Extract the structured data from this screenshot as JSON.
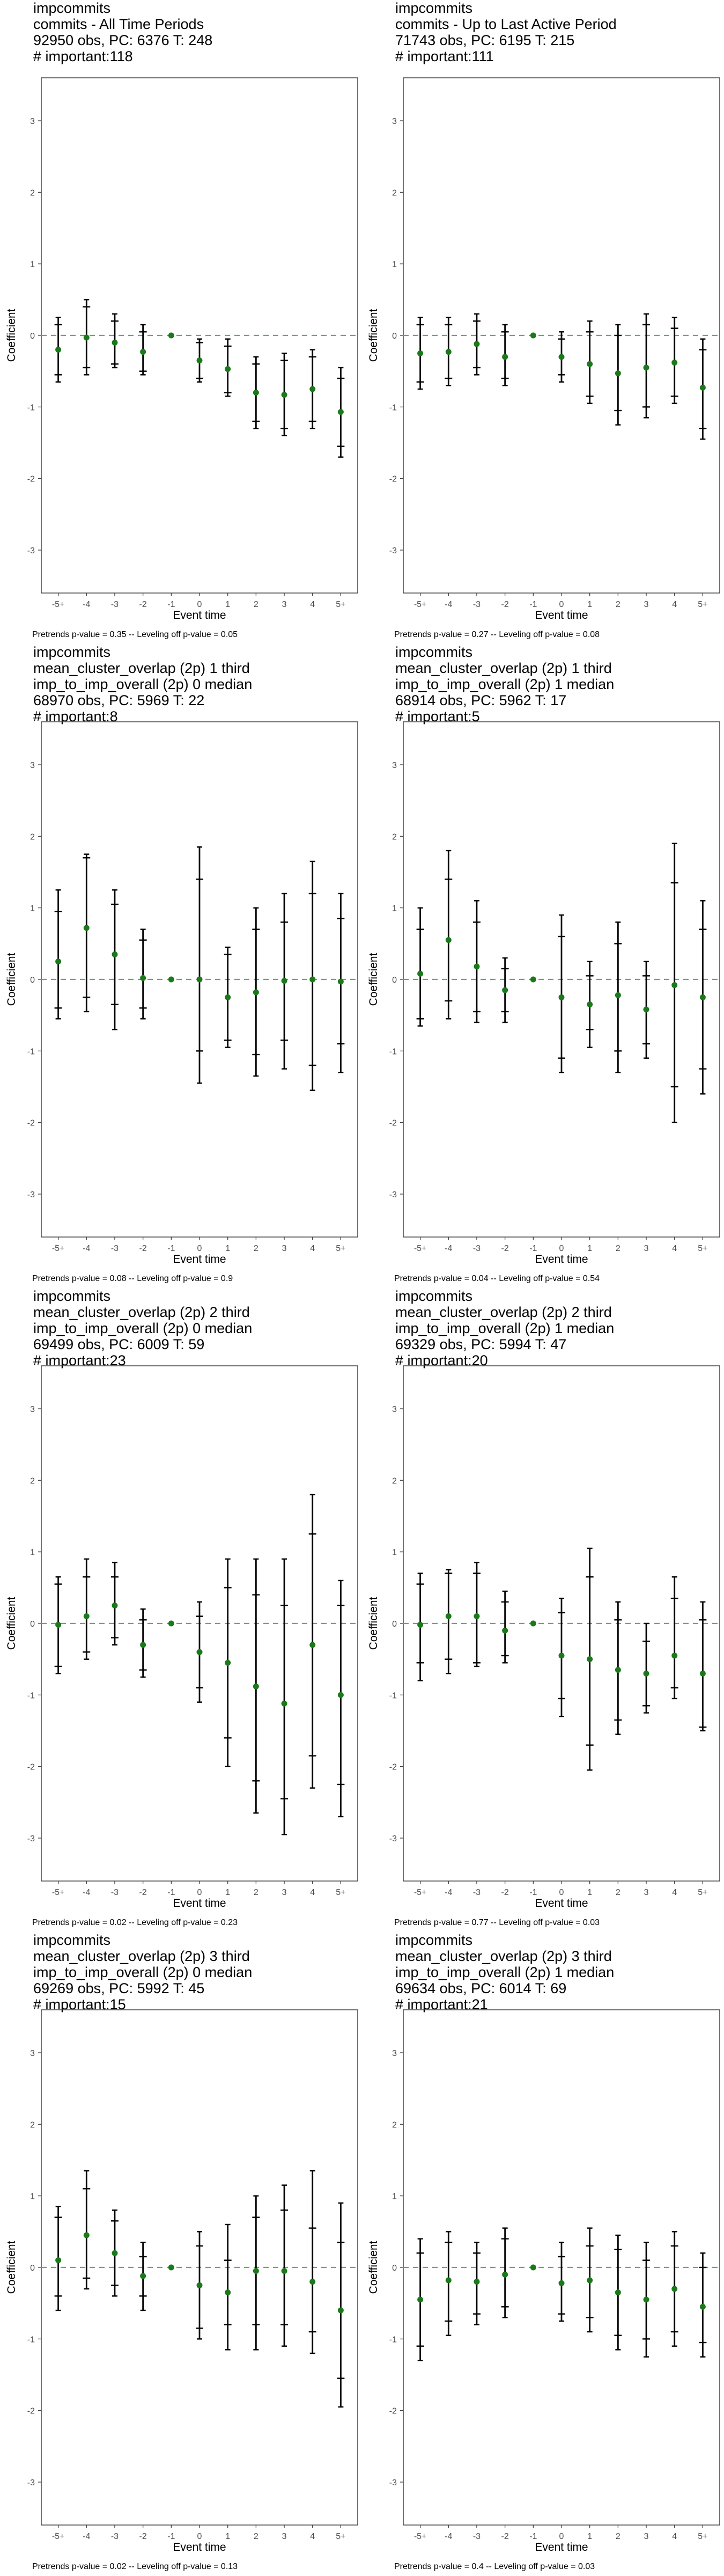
{
  "figure": {
    "background": "#ffffff",
    "point_color": "#1a7a1a",
    "zero_line_color": "#33cc33",
    "bar_color": "#000000"
  },
  "chart_data": [
    {
      "type": "scatter",
      "title_lines": [
        "impcommits",
        "commits - All Time Periods",
        "92950 obs, PC: 6376 T: 248",
        "# important:118"
      ],
      "xlabel": "Event time",
      "ylabel": "Coefficient",
      "categories": [
        "-5+",
        "-4",
        "-3",
        "-2",
        "-1",
        "0",
        "1",
        "2",
        "3",
        "4",
        "5+"
      ],
      "ylim": [
        -3.6,
        3.6
      ],
      "yticks": [
        -3,
        -2,
        -1,
        0,
        1,
        2,
        3
      ],
      "series": [
        {
          "values": [
            -0.2,
            -0.03,
            -0.1,
            -0.23,
            0,
            -0.35,
            -0.47,
            -0.8,
            -0.83,
            -0.75,
            -1.07
          ],
          "ci90_low": [
            -0.55,
            -0.45,
            -0.4,
            -0.5,
            0,
            -0.6,
            -0.8,
            -1.2,
            -1.3,
            -1.2,
            -1.55
          ],
          "ci90_high": [
            0.15,
            0.4,
            0.2,
            0.05,
            0,
            -0.1,
            -0.15,
            -0.4,
            -0.35,
            -0.3,
            -0.6
          ],
          "ci95_low": [
            -0.65,
            -0.55,
            -0.45,
            -0.55,
            0,
            -0.65,
            -0.85,
            -1.3,
            -1.4,
            -1.3,
            -1.7
          ],
          "ci95_high": [
            0.25,
            0.5,
            0.3,
            0.15,
            0,
            -0.05,
            -0.05,
            -0.3,
            -0.25,
            -0.2,
            -0.45
          ]
        }
      ],
      "footnote": "Pretrends p-value = 0.35 -- Leveling off p-value = 0.05"
    },
    {
      "type": "scatter",
      "title_lines": [
        "impcommits",
        "commits - Up to Last Active Period",
        "71743 obs, PC: 6195 T: 215",
        "# important:111"
      ],
      "xlabel": "Event time",
      "ylabel": "Coefficient",
      "categories": [
        "-5+",
        "-4",
        "-3",
        "-2",
        "-1",
        "0",
        "1",
        "2",
        "3",
        "4",
        "5+"
      ],
      "ylim": [
        -3.6,
        3.6
      ],
      "yticks": [
        -3,
        -2,
        -1,
        0,
        1,
        2,
        3
      ],
      "series": [
        {
          "values": [
            -0.25,
            -0.23,
            -0.12,
            -0.3,
            0,
            -0.3,
            -0.4,
            -0.53,
            -0.45,
            -0.38,
            -0.73
          ],
          "ci90_low": [
            -0.65,
            -0.6,
            -0.45,
            -0.6,
            0,
            -0.55,
            -0.85,
            -1.05,
            -1.0,
            -0.85,
            -1.3
          ],
          "ci90_high": [
            0.15,
            0.15,
            0.2,
            0.05,
            0,
            -0.05,
            0.05,
            0.0,
            0.15,
            0.1,
            -0.2
          ],
          "ci95_low": [
            -0.75,
            -0.7,
            -0.55,
            -0.7,
            0,
            -0.65,
            -0.95,
            -1.25,
            -1.15,
            -0.95,
            -1.45
          ],
          "ci95_high": [
            0.25,
            0.25,
            0.3,
            0.15,
            0,
            0.05,
            0.2,
            0.15,
            0.3,
            0.25,
            -0.05
          ]
        }
      ],
      "footnote": "Pretrends p-value = 0.27 -- Leveling off p-value = 0.08"
    },
    {
      "type": "scatter",
      "title_lines": [
        "impcommits",
        "mean_cluster_overlap (2p) 1 third",
        "imp_to_imp_overall (2p) 0 median",
        "68970 obs, PC: 5969 T: 22",
        "# important:8"
      ],
      "xlabel": "Event time",
      "ylabel": "Coefficient",
      "categories": [
        "-5+",
        "-4",
        "-3",
        "-2",
        "-1",
        "0",
        "1",
        "2",
        "3",
        "4",
        "5+"
      ],
      "ylim": [
        -3.6,
        3.6
      ],
      "yticks": [
        -3,
        -2,
        -1,
        0,
        1,
        2,
        3
      ],
      "series": [
        {
          "values": [
            0.25,
            0.72,
            0.35,
            0.02,
            0,
            0.0,
            -0.25,
            -0.18,
            -0.02,
            0.0,
            -0.03
          ],
          "ci90_low": [
            -0.4,
            -0.25,
            -0.35,
            -0.4,
            0,
            -1.0,
            -0.85,
            -1.05,
            -0.85,
            -1.2,
            -0.9
          ],
          "ci90_high": [
            0.95,
            1.7,
            1.05,
            0.55,
            0,
            1.4,
            0.35,
            0.7,
            0.8,
            1.2,
            0.85
          ],
          "ci95_low": [
            -0.55,
            -0.45,
            -0.7,
            -0.55,
            0,
            -1.45,
            -0.95,
            -1.35,
            -1.25,
            -1.55,
            -1.3
          ],
          "ci95_high": [
            1.25,
            1.75,
            1.25,
            0.7,
            0,
            1.85,
            0.45,
            1.0,
            1.2,
            1.65,
            1.2
          ]
        }
      ],
      "footnote": "Pretrends p-value = 0.08 -- Leveling off p-value = 0.9"
    },
    {
      "type": "scatter",
      "title_lines": [
        "impcommits",
        "mean_cluster_overlap (2p) 1 third",
        "imp_to_imp_overall (2p) 1 median",
        "68914 obs, PC: 5962 T: 17",
        "# important:5"
      ],
      "xlabel": "Event time",
      "ylabel": "Coefficient",
      "categories": [
        "-5+",
        "-4",
        "-3",
        "-2",
        "-1",
        "0",
        "1",
        "2",
        "3",
        "4",
        "5+"
      ],
      "ylim": [
        -3.6,
        3.6
      ],
      "yticks": [
        -3,
        -2,
        -1,
        0,
        1,
        2,
        3
      ],
      "series": [
        {
          "values": [
            0.08,
            0.55,
            0.18,
            -0.15,
            0,
            -0.25,
            -0.35,
            -0.22,
            -0.42,
            -0.08,
            -0.25
          ],
          "ci90_low": [
            -0.55,
            -0.3,
            -0.45,
            -0.45,
            0,
            -1.1,
            -0.7,
            -1.0,
            -0.9,
            -1.5,
            -1.25
          ],
          "ci90_high": [
            0.7,
            1.4,
            0.8,
            0.15,
            0,
            0.6,
            0.05,
            0.5,
            0.05,
            1.35,
            0.7
          ],
          "ci95_low": [
            -0.65,
            -0.55,
            -0.6,
            -0.6,
            0,
            -1.3,
            -0.95,
            -1.3,
            -1.1,
            -2.0,
            -1.6
          ],
          "ci95_high": [
            1.0,
            1.8,
            1.1,
            0.3,
            0,
            0.9,
            0.25,
            0.8,
            0.25,
            1.9,
            1.1
          ]
        }
      ],
      "footnote": "Pretrends p-value = 0.04 -- Leveling off p-value = 0.54"
    },
    {
      "type": "scatter",
      "title_lines": [
        "impcommits",
        "mean_cluster_overlap (2p) 2 third",
        "imp_to_imp_overall (2p) 0 median",
        "69499 obs, PC: 6009 T: 59",
        "# important:23"
      ],
      "xlabel": "Event time",
      "ylabel": "Coefficient",
      "categories": [
        "-5+",
        "-4",
        "-3",
        "-2",
        "-1",
        "0",
        "1",
        "2",
        "3",
        "4",
        "5+"
      ],
      "ylim": [
        -3.6,
        3.6
      ],
      "yticks": [
        -3,
        -2,
        -1,
        0,
        1,
        2,
        3
      ],
      "series": [
        {
          "values": [
            -0.02,
            0.1,
            0.25,
            -0.3,
            0,
            -0.4,
            -0.55,
            -0.88,
            -1.12,
            -0.3,
            -1.0
          ],
          "ci90_low": [
            -0.6,
            -0.4,
            -0.2,
            -0.65,
            0,
            -0.9,
            -1.6,
            -2.2,
            -2.45,
            -1.85,
            -2.25
          ],
          "ci90_high": [
            0.55,
            0.65,
            0.65,
            0.05,
            0,
            0.1,
            0.5,
            0.4,
            0.25,
            1.25,
            0.25
          ],
          "ci95_low": [
            -0.7,
            -0.5,
            -0.3,
            -0.75,
            0,
            -1.1,
            -2.0,
            -2.65,
            -2.95,
            -2.3,
            -2.7
          ],
          "ci95_high": [
            0.65,
            0.9,
            0.85,
            0.2,
            0,
            0.3,
            0.9,
            0.9,
            0.9,
            1.8,
            0.6
          ]
        }
      ],
      "footnote": "Pretrends p-value = 0.02 -- Leveling off p-value = 0.23"
    },
    {
      "type": "scatter",
      "title_lines": [
        "impcommits",
        "mean_cluster_overlap (2p) 2 third",
        "imp_to_imp_overall (2p) 1 median",
        "69329 obs, PC: 5994 T: 47",
        "# important:20"
      ],
      "xlabel": "Event time",
      "ylabel": "Coefficient",
      "categories": [
        "-5+",
        "-4",
        "-3",
        "-2",
        "-1",
        "0",
        "1",
        "2",
        "3",
        "4",
        "5+"
      ],
      "ylim": [
        -3.6,
        3.6
      ],
      "yticks": [
        -3,
        -2,
        -1,
        0,
        1,
        2,
        3
      ],
      "series": [
        {
          "values": [
            -0.02,
            0.1,
            0.1,
            -0.1,
            0,
            -0.45,
            -0.5,
            -0.65,
            -0.7,
            -0.45,
            -0.7
          ],
          "ci90_low": [
            -0.55,
            -0.5,
            -0.55,
            -0.45,
            0,
            -1.05,
            -1.7,
            -1.35,
            -1.15,
            -0.9,
            -1.45
          ],
          "ci90_high": [
            0.55,
            0.7,
            0.7,
            0.3,
            0,
            0.15,
            0.65,
            0.05,
            -0.25,
            0.35,
            0.05
          ],
          "ci95_low": [
            -0.8,
            -0.7,
            -0.6,
            -0.55,
            0,
            -1.3,
            -2.05,
            -1.55,
            -1.25,
            -1.05,
            -1.5
          ],
          "ci95_high": [
            0.7,
            0.75,
            0.85,
            0.45,
            0,
            0.35,
            1.05,
            0.3,
            0.0,
            0.65,
            0.3
          ]
        }
      ],
      "footnote": "Pretrends p-value = 0.77 -- Leveling off p-value = 0.03"
    },
    {
      "type": "scatter",
      "title_lines": [
        "impcommits",
        "mean_cluster_overlap (2p) 3 third",
        "imp_to_imp_overall (2p) 0 median",
        "69269 obs, PC: 5992 T: 45",
        "# important:15"
      ],
      "xlabel": "Event time",
      "ylabel": "Coefficient",
      "categories": [
        "-5+",
        "-4",
        "-3",
        "-2",
        "-1",
        "0",
        "1",
        "2",
        "3",
        "4",
        "5+"
      ],
      "ylim": [
        -3.6,
        3.6
      ],
      "yticks": [
        -3,
        -2,
        -1,
        0,
        1,
        2,
        3
      ],
      "series": [
        {
          "values": [
            0.1,
            0.45,
            0.2,
            -0.12,
            0,
            -0.25,
            -0.35,
            -0.05,
            -0.05,
            -0.2,
            -0.6
          ],
          "ci90_low": [
            -0.4,
            -0.15,
            -0.25,
            -0.4,
            0,
            -0.85,
            -0.8,
            -0.8,
            -0.8,
            -0.9,
            -1.55
          ],
          "ci90_high": [
            0.7,
            1.1,
            0.65,
            0.15,
            0,
            0.3,
            0.1,
            0.7,
            0.8,
            0.55,
            0.35
          ],
          "ci95_low": [
            -0.6,
            -0.3,
            -0.4,
            -0.6,
            0,
            -1.0,
            -1.15,
            -1.15,
            -1.1,
            -1.2,
            -1.95
          ],
          "ci95_high": [
            0.85,
            1.35,
            0.8,
            0.35,
            0,
            0.5,
            0.6,
            1.0,
            1.15,
            1.35,
            0.9
          ]
        }
      ],
      "footnote": "Pretrends p-value = 0.02 -- Leveling off p-value = 0.13"
    },
    {
      "type": "scatter",
      "title_lines": [
        "impcommits",
        "mean_cluster_overlap (2p) 3 third",
        "imp_to_imp_overall (2p) 1 median",
        "69634 obs, PC: 6014 T: 69",
        "# important:21"
      ],
      "xlabel": "Event time",
      "ylabel": "Coefficient",
      "categories": [
        "-5+",
        "-4",
        "-3",
        "-2",
        "-1",
        "0",
        "1",
        "2",
        "3",
        "4",
        "5+"
      ],
      "ylim": [
        -3.6,
        3.6
      ],
      "yticks": [
        -3,
        -2,
        -1,
        0,
        1,
        2,
        3
      ],
      "series": [
        {
          "values": [
            -0.45,
            -0.18,
            -0.2,
            -0.1,
            0,
            -0.22,
            -0.18,
            -0.35,
            -0.45,
            -0.3,
            -0.55
          ],
          "ci90_low": [
            -1.1,
            -0.75,
            -0.65,
            -0.55,
            0,
            -0.65,
            -0.7,
            -0.95,
            -1.0,
            -0.9,
            -1.05
          ],
          "ci90_high": [
            0.2,
            0.35,
            0.2,
            0.4,
            0,
            0.15,
            0.3,
            0.25,
            0.1,
            0.3,
            0.0
          ],
          "ci95_low": [
            -1.3,
            -0.95,
            -0.8,
            -0.7,
            0,
            -0.75,
            -0.9,
            -1.15,
            -1.25,
            -1.1,
            -1.25
          ],
          "ci95_high": [
            0.4,
            0.5,
            0.35,
            0.55,
            0,
            0.35,
            0.55,
            0.45,
            0.35,
            0.5,
            0.2
          ]
        }
      ],
      "footnote": "Pretrends p-value = 0.4 -- Leveling off p-value = 0.03"
    }
  ]
}
